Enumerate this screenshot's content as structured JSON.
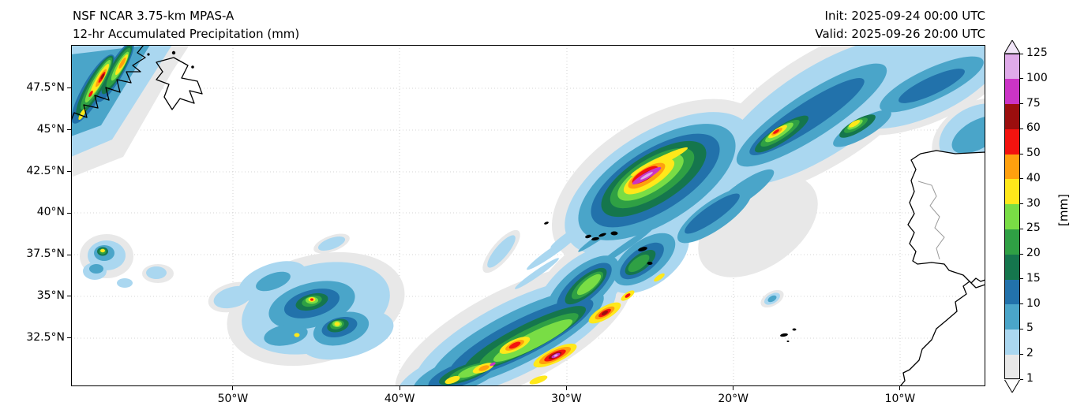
{
  "header": {
    "title_line1": "NSF NCAR 3.75-km MPAS-A",
    "title_line2": "12-hr Accumulated Precipitation (mm)",
    "init_time": "Init: 2025-09-24 00:00 UTC",
    "valid_time": "Valid: 2025-09-26 20:00 UTC"
  },
  "axes": {
    "y_ticks": [
      "47.5°N",
      "45°N",
      "42.5°N",
      "40°N",
      "37.5°N",
      "35°N",
      "32.5°N"
    ],
    "x_ticks": [
      "50°W",
      "40°W",
      "30°W",
      "20°W",
      "10°W"
    ]
  },
  "colorbar": {
    "unit_label": "[mm]",
    "levels": [
      1,
      2,
      5,
      10,
      15,
      20,
      25,
      30,
      40,
      50,
      60,
      75,
      100,
      125
    ],
    "colors": [
      "#e8e8e8",
      "#aad7f0",
      "#4aa5c9",
      "#2272ab",
      "#15764d",
      "#2fa044",
      "#79dd45",
      "#ffe81a",
      "#ffa00e",
      "#f3130f",
      "#9b0e0e",
      "#cb34c6",
      "#dfaae9"
    ],
    "under_color": "#ffffff",
    "over_color": "#f2e6f9"
  },
  "chart_data": {
    "type": "heatmap",
    "title": "NSF NCAR 3.75-km MPAS-A — 12-hr Accumulated Precipitation (mm)",
    "init_time": "2025-09-24 00:00 UTC",
    "valid_time": "2025-09-26 20:00 UTC",
    "region": "North Atlantic between Newfoundland, the Azores, Madeira, Iberia and northwest Africa",
    "x_ticks_deg_w": [
      50,
      40,
      30,
      20,
      10
    ],
    "y_ticks_deg_n": [
      47.5,
      45,
      42.5,
      40,
      37.5,
      35,
      32.5
    ],
    "extent": {
      "lon_west_deg_w": 59.7,
      "lon_east_deg_w": 4.9,
      "lat_south_deg_n": 29.6,
      "lat_north_deg_n": 50.1
    },
    "colorbar_levels_mm": [
      1,
      2,
      5,
      10,
      15,
      20,
      25,
      30,
      40,
      50,
      60,
      75,
      100,
      125
    ],
    "colorbar_extend": "both",
    "grid": "dotted graticule at tick latitudes/longitudes",
    "legend_position": "right colorbar with [mm] label",
    "features": [
      {
        "name": "cyclone-head-heavy-precip",
        "approx_lon_deg_w": 25,
        "approx_lat_deg_n": 41.5,
        "peak_mm": "100+ (magenta/violet core ringed by red, orange, yellow, greens, blues)"
      },
      {
        "name": "trailing-frontal-band",
        "from_lon_lat": [
          37,
          29.8
        ],
        "to_lon_lat": [
          25,
          36
        ],
        "peak_mm": "75-100+ embedded cells (yellow/red/magenta) in teal-green band"
      },
      {
        "name": "northeast-band-toward-top-right",
        "from_lon_lat": [
          20,
          40
        ],
        "to_lon_lat": [
          8,
          50
        ],
        "peak_mm": "40-60 cells near 17W 42.5N and 12W 43N within broad 2-15 mm band"
      },
      {
        "name": "newfoundland-system",
        "approx_lon_deg_w": 56,
        "approx_lat_deg_n": 48.5,
        "peak_mm": "50-60 streaks (yellow/red) within green/teal shield over and west of Newfoundland"
      },
      {
        "name": "scattered-showers-central-west",
        "approx_lon_deg_w": 45,
        "approx_lat_deg_n": 34,
        "peak_mm": "30-50 isolated dots within light blue/teal patches"
      },
      {
        "name": "small-showers-far-west",
        "approx_lon_deg_w": 58,
        "approx_lat_deg_n": 37.5,
        "peak_mm": "30-40 speck"
      }
    ],
    "land_features_visible": [
      "Newfoundland",
      "Azores",
      "Madeira",
      "Iberian Peninsula with gray Portugal-Spain border",
      "Northwest Africa coast"
    ]
  }
}
